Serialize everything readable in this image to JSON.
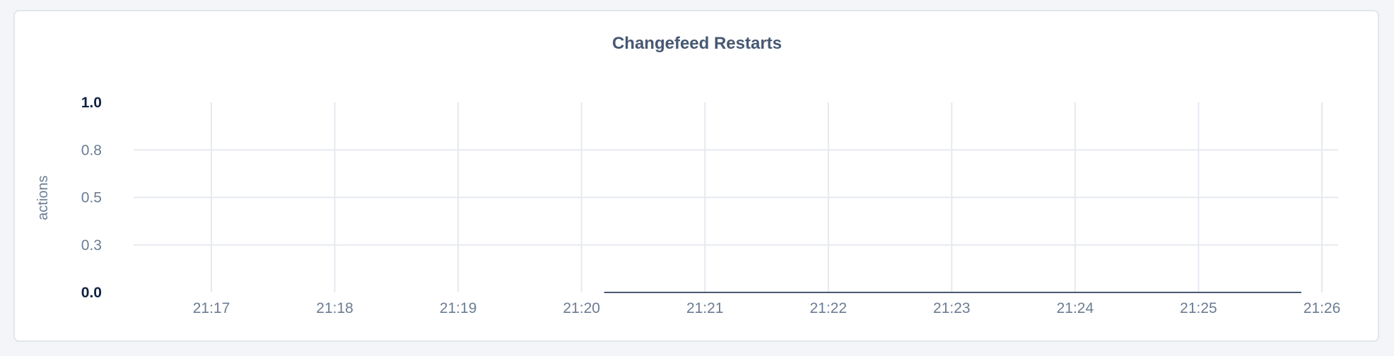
{
  "chart_data": {
    "type": "line",
    "title": "Changefeed Restarts",
    "xlabel": "",
    "ylabel": "actions",
    "ylim": [
      0,
      1
    ],
    "xlim": [
      "21:16:21",
      "21:26:13"
    ],
    "grid": true,
    "y_ticks": [
      {
        "value": 0,
        "label": "0.0",
        "bold": true
      },
      {
        "value": 0.25,
        "label": "0.3",
        "bold": false
      },
      {
        "value": 0.5,
        "label": "0.5",
        "bold": false
      },
      {
        "value": 0.75,
        "label": "0.8",
        "bold": false
      },
      {
        "value": 1,
        "label": "1.0",
        "bold": true
      }
    ],
    "x_ticks": [
      "21:17",
      "21:18",
      "21:19",
      "21:20",
      "21:21",
      "21:22",
      "21:23",
      "21:24",
      "21:25",
      "21:26"
    ],
    "series": [
      {
        "color": "#475872",
        "points": [
          {
            "x": "21:20:11",
            "y": 0
          },
          {
            "x": "21:25:50",
            "y": 0
          }
        ]
      }
    ]
  }
}
